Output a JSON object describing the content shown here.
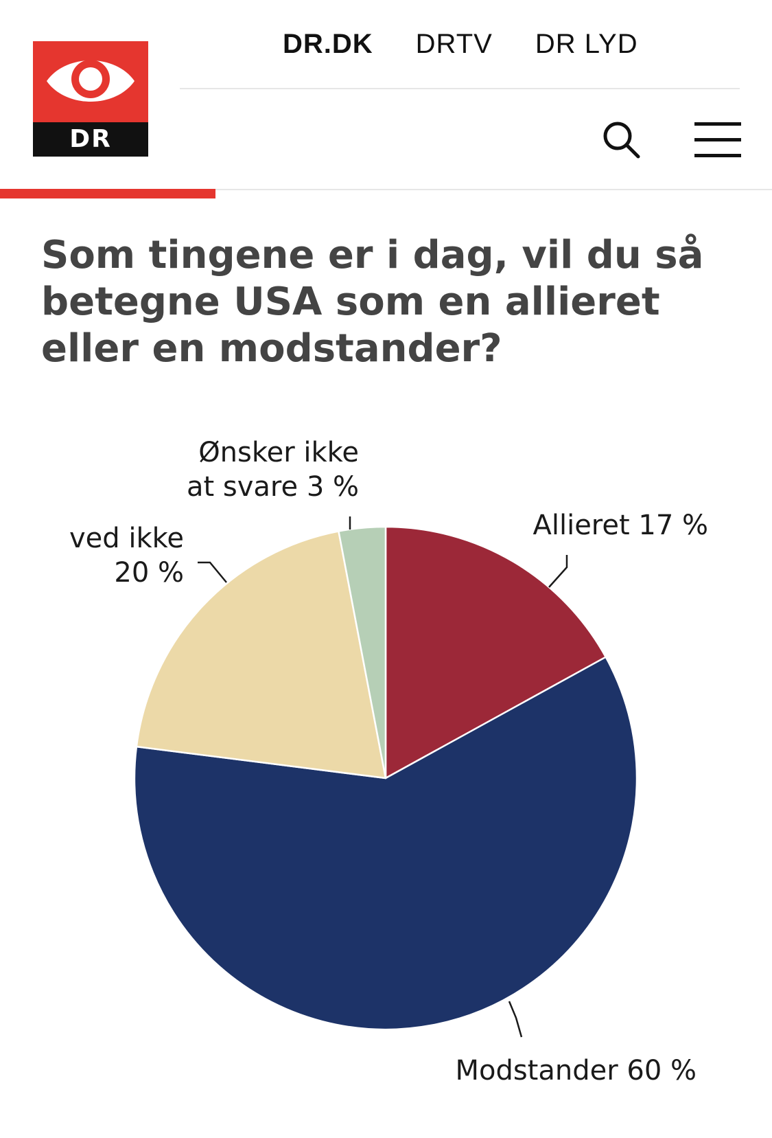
{
  "header": {
    "logo_text": "DR",
    "nav": [
      {
        "label": "DR.DK",
        "active": true
      },
      {
        "label": "DRTV",
        "active": false
      },
      {
        "label": "DR LYD",
        "active": false
      }
    ],
    "search_icon": "search-icon",
    "menu_icon": "hamburger-menu-icon"
  },
  "article": {
    "question": "Som tingene er i dag, vil du så betegne USA som en allieret eller en modstander?"
  },
  "colors": {
    "brand_red": "#e5362f",
    "allieret": "#9c2838",
    "modstander": "#1d3368",
    "ved_ikke": "#ecd9a8",
    "onsker_ikke": "#b6cfb6"
  },
  "chart_data": {
    "type": "pie",
    "title": "Som tingene er i dag, vil du så betegne USA som en allieret eller en modstander?",
    "unit": "%",
    "start": "top, clockwise",
    "slices": [
      {
        "name": "Allieret",
        "value": 17,
        "color": "#9c2838",
        "label_lines": [
          "Allieret 17 %"
        ],
        "label_position": "upper-right"
      },
      {
        "name": "Modstander",
        "value": 60,
        "color": "#1d3368",
        "label_lines": [
          "Modstander 60 %"
        ],
        "label_position": "bottom-right"
      },
      {
        "name": "ved ikke",
        "value": 20,
        "color": "#ecd9a8",
        "label_lines": [
          "ved ikke",
          "20 %"
        ],
        "label_position": "upper-left"
      },
      {
        "name": "Ønsker ikke at svare",
        "value": 3,
        "color": "#b6cfb6",
        "label_lines": [
          "Ønsker ikke",
          "at svare 3 %"
        ],
        "label_position": "top"
      }
    ]
  }
}
